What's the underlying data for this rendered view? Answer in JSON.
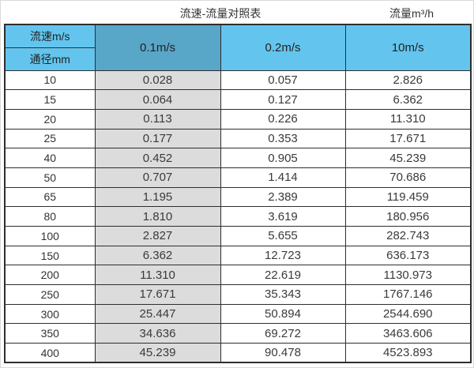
{
  "header": {
    "title": "流速-流量对照表",
    "right_label": "流量m³/h"
  },
  "table": {
    "corner_top": "流速m/s",
    "corner_bottom": "通径mm",
    "columns": [
      "0.1m/s",
      "0.2m/s",
      "10m/s"
    ],
    "rows": [
      {
        "dn": "10",
        "values": [
          "0.028",
          "0.057",
          "2.826"
        ]
      },
      {
        "dn": "15",
        "values": [
          "0.064",
          "0.127",
          "6.362"
        ]
      },
      {
        "dn": "20",
        "values": [
          "0.113",
          "0.226",
          "11.310"
        ]
      },
      {
        "dn": "25",
        "values": [
          "0.177",
          "0.353",
          "17.671"
        ]
      },
      {
        "dn": "40",
        "values": [
          "0.452",
          "0.905",
          "45.239"
        ]
      },
      {
        "dn": "50",
        "values": [
          "0.707",
          "1.414",
          "70.686"
        ]
      },
      {
        "dn": "65",
        "values": [
          "1.195",
          "2.389",
          "119.459"
        ]
      },
      {
        "dn": "80",
        "values": [
          "1.810",
          "3.619",
          "180.956"
        ]
      },
      {
        "dn": "100",
        "values": [
          "2.827",
          "5.655",
          "282.743"
        ]
      },
      {
        "dn": "150",
        "values": [
          "6.362",
          "12.723",
          "636.173"
        ]
      },
      {
        "dn": "200",
        "values": [
          "11.310",
          "22.619",
          "1130.973"
        ]
      },
      {
        "dn": "250",
        "values": [
          "17.671",
          "35.343",
          "1767.146"
        ]
      },
      {
        "dn": "300",
        "values": [
          "25.447",
          "50.894",
          "2544.690"
        ]
      },
      {
        "dn": "350",
        "values": [
          "34.636",
          "69.272",
          "3463.606"
        ]
      },
      {
        "dn": "400",
        "values": [
          "45.239",
          "90.478",
          "4523.893"
        ]
      }
    ]
  },
  "colors": {
    "header_blue": "#63c5ee",
    "header_dark_blue": "#58a6c8",
    "highlight_column_gray": "#dcdcdc",
    "border": "#2e2e2e"
  },
  "chart_data": {
    "type": "table",
    "title": "流速-流量对照表",
    "flow_unit_label": "流量m³/h",
    "row_header": "通径mm",
    "column_header": "流速m/s",
    "columns": [
      "0.1m/s",
      "0.2m/s",
      "10m/s"
    ],
    "diameters_mm": [
      10,
      15,
      20,
      25,
      40,
      50,
      65,
      80,
      100,
      150,
      200,
      250,
      300,
      350,
      400
    ],
    "series": [
      {
        "name": "0.1m/s",
        "values": [
          0.028,
          0.064,
          0.113,
          0.177,
          0.452,
          0.707,
          1.195,
          1.81,
          2.827,
          6.362,
          11.31,
          17.671,
          25.447,
          34.636,
          45.239
        ]
      },
      {
        "name": "0.2m/s",
        "values": [
          0.057,
          0.127,
          0.226,
          0.353,
          0.905,
          1.414,
          2.389,
          3.619,
          5.655,
          12.723,
          22.619,
          35.343,
          50.894,
          69.272,
          90.478
        ]
      },
      {
        "name": "10m/s",
        "values": [
          2.826,
          6.362,
          11.31,
          17.671,
          45.239,
          70.686,
          119.459,
          180.956,
          282.743,
          636.173,
          1130.973,
          1767.146,
          2544.69,
          3463.606,
          4523.893
        ]
      }
    ]
  }
}
